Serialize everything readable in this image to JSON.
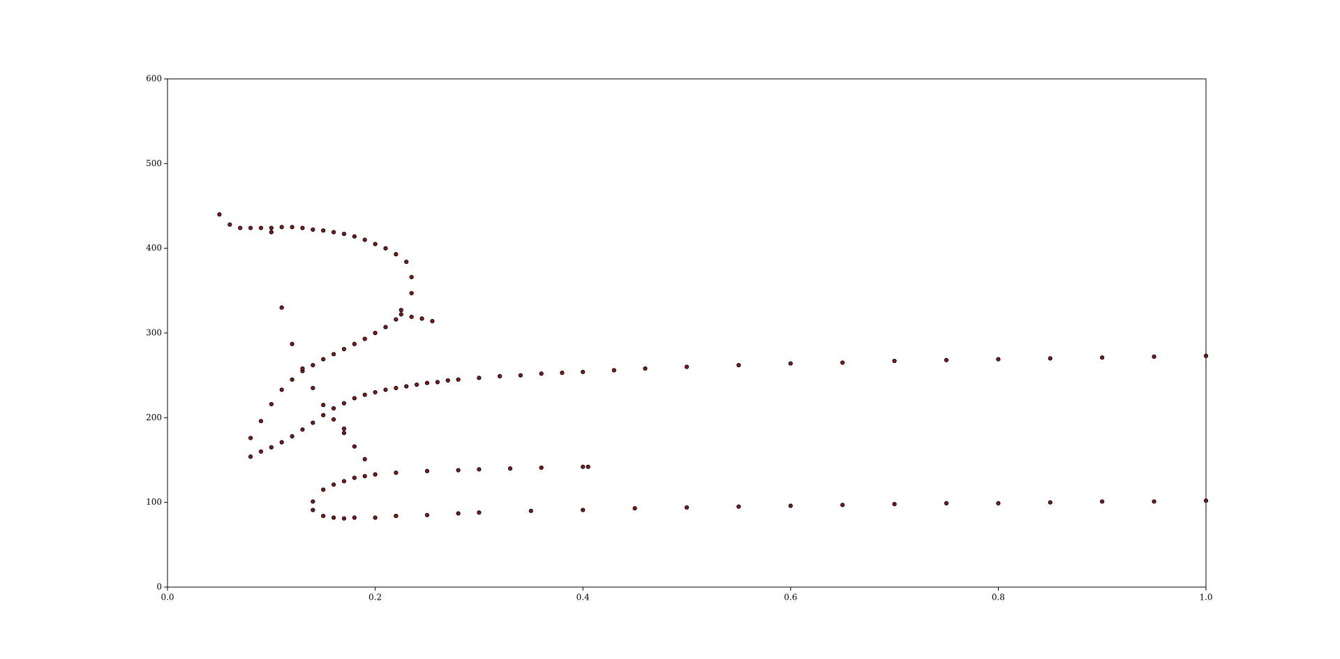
{
  "chart_data": {
    "type": "scatter",
    "color": "#8b1a1a",
    "edgecolor": "#000000",
    "xlim": [
      0,
      1
    ],
    "ylim": [
      0,
      600
    ],
    "xticks": [
      {
        "value": 0,
        "label": "0.0"
      },
      {
        "value": 0.2,
        "label": "0.2"
      },
      {
        "value": 0.4,
        "label": "0.4"
      },
      {
        "value": 0.6,
        "label": "0.6"
      },
      {
        "value": 0.8,
        "label": "0.8"
      },
      {
        "value": 1,
        "label": "1.0"
      }
    ],
    "yticks": [
      0,
      100,
      200,
      300,
      400,
      500,
      600
    ],
    "x": [
      0.05,
      0.06,
      0.07,
      0.08,
      0.09,
      0.1,
      0.1,
      0.11,
      0.12,
      0.13,
      0.14,
      0.15,
      0.16,
      0.17,
      0.18,
      0.19,
      0.2,
      0.21,
      0.22,
      0.23,
      0.235,
      0.235,
      0.225,
      0.225,
      0.235,
      0.245,
      0.255,
      0.08,
      0.09,
      0.1,
      0.11,
      0.12,
      0.13,
      0.14,
      0.15,
      0.16,
      0.17,
      0.18,
      0.19,
      0.2,
      0.21,
      0.22,
      0.08,
      0.09,
      0.1,
      0.11,
      0.12,
      0.13,
      0.14,
      0.15,
      0.16,
      0.17,
      0.18,
      0.19,
      0.2,
      0.21,
      0.22,
      0.23,
      0.24,
      0.25,
      0.26,
      0.27,
      0.28,
      0.3,
      0.32,
      0.34,
      0.36,
      0.38,
      0.4,
      0.43,
      0.46,
      0.5,
      0.55,
      0.6,
      0.65,
      0.7,
      0.75,
      0.8,
      0.85,
      0.9,
      0.95,
      1.0,
      0.11,
      0.12,
      0.13,
      0.14,
      0.15,
      0.16,
      0.17,
      0.17,
      0.18,
      0.19,
      0.14,
      0.14,
      0.15,
      0.16,
      0.17,
      0.18,
      0.2,
      0.22,
      0.25,
      0.28,
      0.3,
      0.35,
      0.4,
      0.45,
      0.5,
      0.55,
      0.6,
      0.65,
      0.7,
      0.75,
      0.8,
      0.85,
      0.9,
      0.95,
      1.0,
      0.15,
      0.16,
      0.17,
      0.18,
      0.19,
      0.2,
      0.22,
      0.25,
      0.28,
      0.3,
      0.33,
      0.36,
      0.4,
      0.405
    ],
    "values": [
      440,
      428,
      424,
      424,
      424,
      424,
      419,
      425,
      425,
      424,
      422,
      421,
      419,
      417,
      414,
      410,
      405,
      400,
      393,
      384,
      366,
      347,
      327,
      322,
      319,
      317,
      314,
      176,
      196,
      216,
      233,
      245,
      255,
      262,
      269,
      275,
      281,
      287,
      293,
      300,
      307,
      316,
      154,
      160,
      165,
      171,
      178,
      186,
      194,
      203,
      211,
      217,
      223,
      227,
      230,
      233,
      235,
      237,
      239,
      241,
      242,
      244,
      245,
      247,
      249,
      250,
      252,
      253,
      254,
      256,
      258,
      260,
      262,
      264,
      265,
      267,
      268,
      269,
      270,
      271,
      272,
      273,
      330,
      287,
      258,
      235,
      215,
      198,
      187,
      182,
      166,
      151,
      101,
      91,
      84,
      82,
      81,
      82,
      82,
      84,
      85,
      87,
      88,
      90,
      91,
      93,
      94,
      95,
      96,
      97,
      98,
      99,
      99,
      100,
      101,
      101,
      102,
      115,
      121,
      125,
      129,
      131,
      133,
      135,
      137,
      138,
      139,
      140,
      141,
      142,
      142
    ]
  }
}
